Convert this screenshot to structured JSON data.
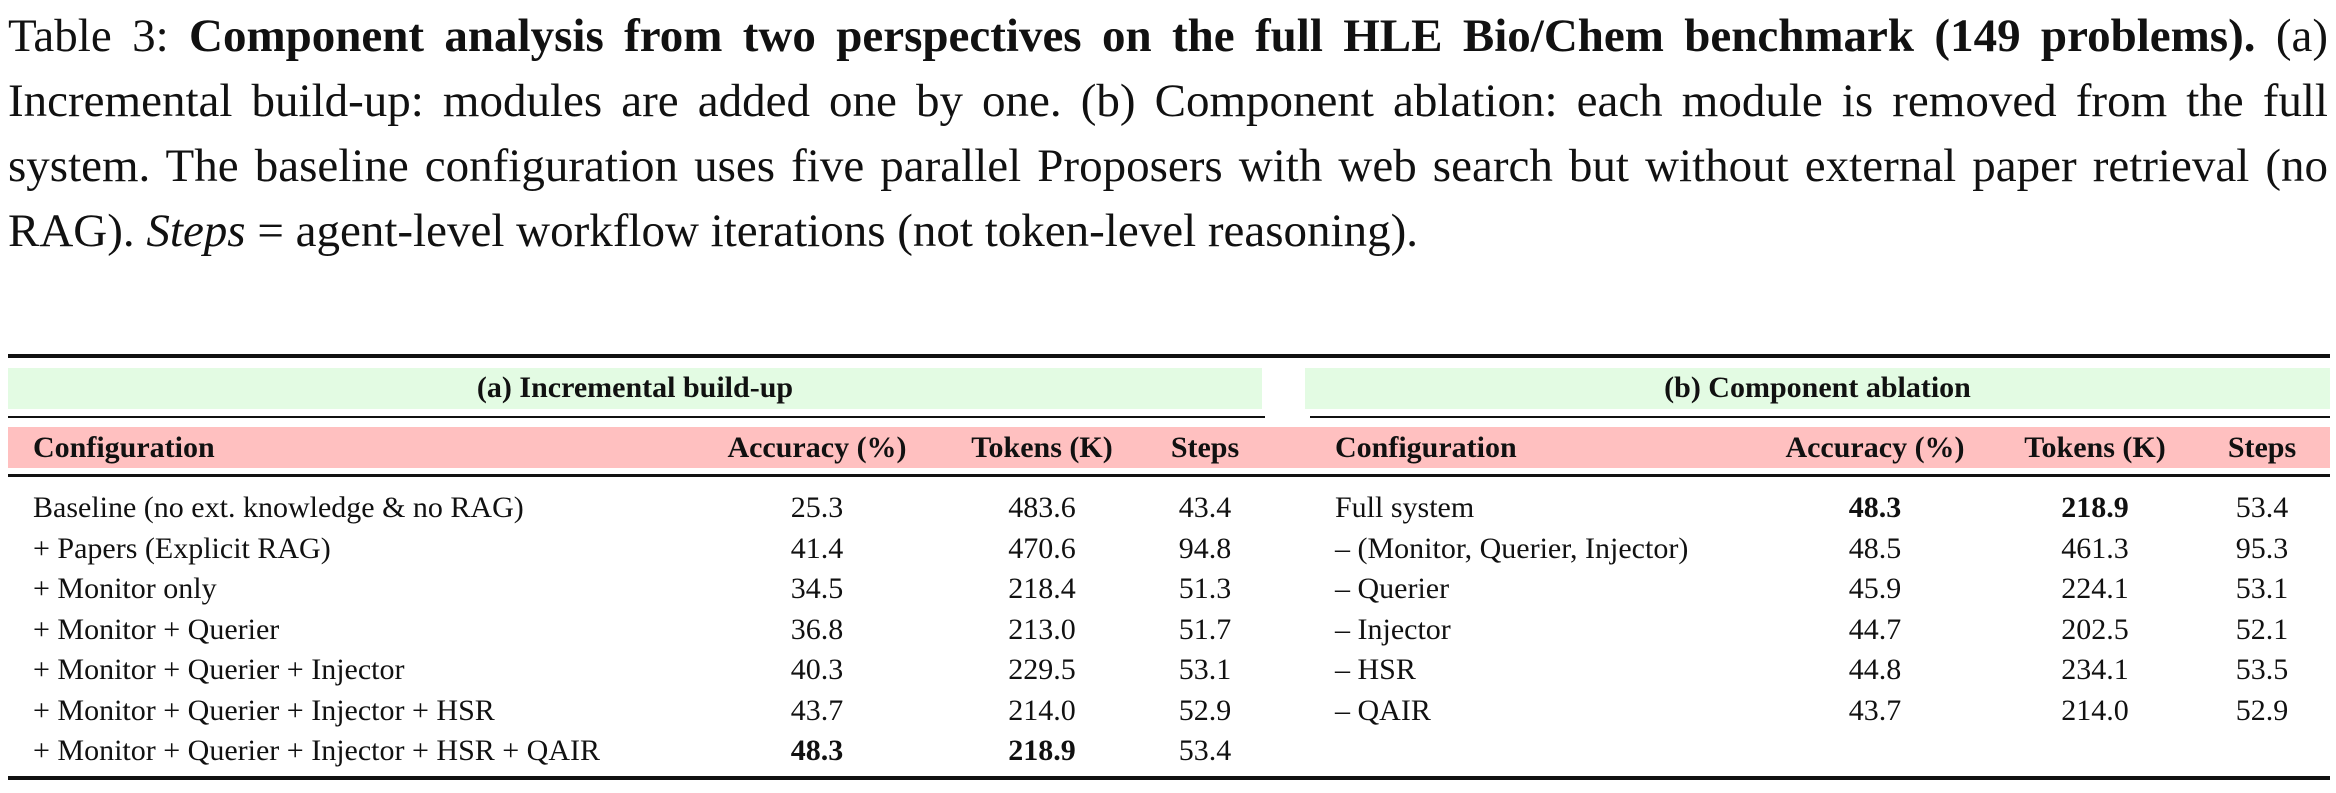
{
  "caption": {
    "label": "Table 3:",
    "title": "Component analysis from two perspectives on the full HLE Bio/Chem benchmark (149 problems).",
    "text1": " (a) Incremental build-up: modules are added one by one. (b) Component ablation: each module is removed from the full system. The baseline configuration uses five parallel Proposers with web search but without external paper retrieval (no RAG). ",
    "steps_word": "Steps",
    "text2": " = agent-level workflow iterations (not token-level reasoning)."
  },
  "colors": {
    "group_header_bg": "#e3fbe3",
    "column_header_bg": "#ffc0c0"
  },
  "table_a": {
    "title": "(a) Incremental build-up",
    "columns": [
      "Configuration",
      "Accuracy (%)",
      "Tokens (K)",
      "Steps"
    ],
    "rows": [
      {
        "config": "Baseline (no ext. knowledge & no RAG)",
        "accuracy": "25.3",
        "tokens": "483.6",
        "steps": "43.4"
      },
      {
        "config": "+ Papers (Explicit RAG)",
        "accuracy": "41.4",
        "tokens": "470.6",
        "steps": "94.8"
      },
      {
        "config": "+ Monitor only",
        "accuracy": "34.5",
        "tokens": "218.4",
        "steps": "51.3"
      },
      {
        "config": "+ Monitor + Querier",
        "accuracy": "36.8",
        "tokens": "213.0",
        "steps": "51.7"
      },
      {
        "config": "+ Monitor + Querier + Injector",
        "accuracy": "40.3",
        "tokens": "229.5",
        "steps": "53.1"
      },
      {
        "config": "+ Monitor + Querier + Injector + HSR",
        "accuracy": "43.7",
        "tokens": "214.0",
        "steps": "52.9"
      },
      {
        "config": "+ Monitor + Querier + Injector + HSR + QAIR",
        "accuracy": "48.3",
        "tokens": "218.9",
        "steps": "53.4",
        "bold": [
          "accuracy",
          "tokens"
        ]
      }
    ]
  },
  "table_b": {
    "title": "(b) Component ablation",
    "columns": [
      "Configuration",
      "Accuracy (%)",
      "Tokens (K)",
      "Steps"
    ],
    "rows": [
      {
        "config": "Full system",
        "accuracy": "48.3",
        "tokens": "218.9",
        "steps": "53.4",
        "bold": [
          "accuracy",
          "tokens"
        ]
      },
      {
        "config": "– (Monitor, Querier, Injector)",
        "accuracy": "48.5",
        "tokens": "461.3",
        "steps": "95.3"
      },
      {
        "config": "– Querier",
        "accuracy": "45.9",
        "tokens": "224.1",
        "steps": "53.1"
      },
      {
        "config": "– Injector",
        "accuracy": "44.7",
        "tokens": "202.5",
        "steps": "52.1"
      },
      {
        "config": "– HSR",
        "accuracy": "44.8",
        "tokens": "234.1",
        "steps": "53.5"
      },
      {
        "config": "– QAIR",
        "accuracy": "43.7",
        "tokens": "214.0",
        "steps": "52.9"
      }
    ]
  }
}
